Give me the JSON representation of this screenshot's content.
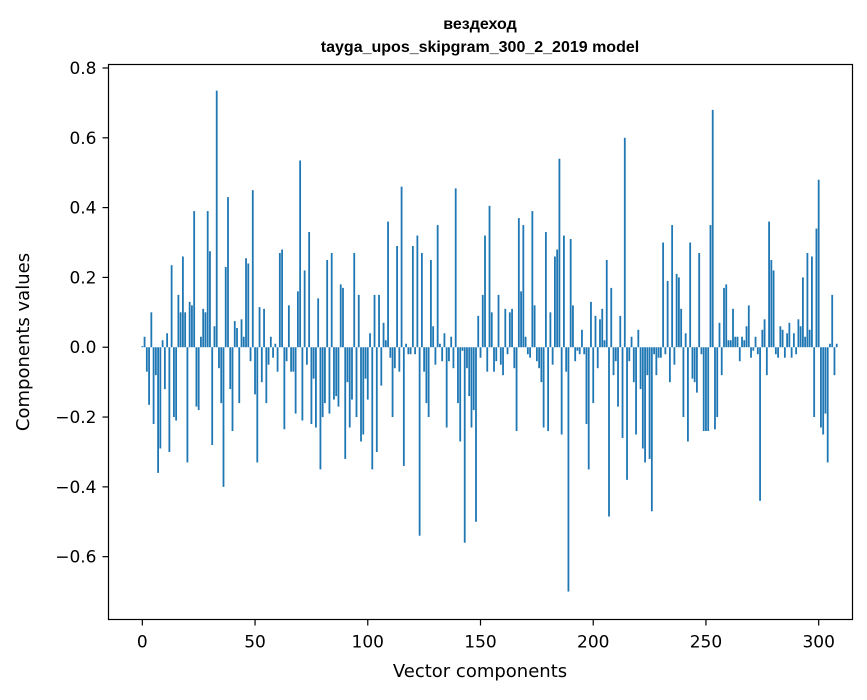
{
  "chart_data": {
    "type": "bar",
    "title": "вездеход",
    "subtitle": "tayga_upos_skipgram_300_2_2019 model",
    "xlabel": "Vector components",
    "ylabel": "Components values",
    "xlim": [
      -15,
      315
    ],
    "ylim": [
      -0.78,
      0.81
    ],
    "xticks": [
      0,
      50,
      100,
      150,
      200,
      250,
      300
    ],
    "yticks": [
      -0.6,
      -0.4,
      -0.2,
      0.0,
      0.2,
      0.4,
      0.6,
      0.8
    ],
    "ytick_labels": [
      "−0.6",
      "−0.4",
      "−0.2",
      "0.0",
      "0.2",
      "0.4",
      "0.6",
      "0.8"
    ],
    "bar_color": "#1f77b4",
    "grid": false,
    "values": [
      0.003,
      0.03,
      -0.07,
      -0.165,
      0.1,
      -0.22,
      -0.08,
      -0.36,
      -0.29,
      0.02,
      -0.12,
      0.04,
      -0.3,
      0.235,
      -0.2,
      -0.21,
      0.15,
      0.1,
      0.26,
      0.1,
      -0.33,
      0.13,
      0.12,
      0.39,
      -0.17,
      -0.18,
      0.03,
      0.11,
      0.1,
      0.39,
      0.275,
      -0.28,
      0.06,
      0.735,
      -0.06,
      -0.16,
      -0.4,
      0.23,
      0.43,
      -0.12,
      -0.24,
      0.075,
      0.055,
      -0.16,
      0.08,
      0.03,
      0.255,
      0.24,
      -0.04,
      0.45,
      -0.135,
      -0.33,
      0.115,
      -0.1,
      0.11,
      -0.16,
      -0.05,
      0.03,
      -0.03,
      0.01,
      -0.07,
      0.27,
      0.28,
      -0.235,
      -0.04,
      0.12,
      -0.07,
      -0.07,
      -0.19,
      0.16,
      0.535,
      -0.21,
      0.22,
      -0.05,
      0.33,
      -0.22,
      -0.09,
      -0.23,
      0.14,
      -0.35,
      -0.2,
      -0.16,
      0.25,
      -0.19,
      0.27,
      -0.15,
      -0.14,
      -0.17,
      0.18,
      0.17,
      -0.32,
      -0.1,
      -0.23,
      -0.15,
      0.27,
      -0.2,
      0.15,
      -0.27,
      -0.25,
      -0.09,
      -0.15,
      0.04,
      -0.35,
      0.15,
      -0.3,
      0.15,
      -0.11,
      0.07,
      0.02,
      0.36,
      -0.03,
      -0.2,
      -0.06,
      0.29,
      -0.07,
      0.46,
      -0.34,
      0.01,
      -0.02,
      -0.02,
      0.29,
      -0.02,
      0.32,
      -0.54,
      0.27,
      -0.07,
      -0.16,
      -0.2,
      0.25,
      0.06,
      -0.05,
      0.35,
      0.01,
      -0.04,
      0.04,
      -0.23,
      -0.04,
      0.03,
      -0.06,
      0.455,
      -0.16,
      -0.27,
      -0.01,
      -0.56,
      -0.06,
      -0.14,
      -0.23,
      -0.18,
      -0.5,
      0.09,
      -0.03,
      0.15,
      0.32,
      -0.07,
      0.405,
      0.1,
      -0.07,
      -0.04,
      0.15,
      -0.05,
      -0.08,
      0.11,
      -0.02,
      0.1,
      0.11,
      -0.06,
      -0.24,
      0.37,
      0.16,
      0.35,
      0.03,
      -0.02,
      -0.03,
      0.39,
      0.12,
      -0.04,
      -0.06,
      -0.1,
      -0.23,
      0.33,
      -0.24,
      0.1,
      -0.05,
      0.26,
      0.28,
      0.54,
      -0.25,
      0.32,
      -0.07,
      -0.7,
      0.31,
      0.12,
      -0.04,
      -0.01,
      -0.02,
      0.05,
      -0.02,
      -0.22,
      -0.35,
      0.13,
      -0.16,
      0.09,
      -0.06,
      0.08,
      0.11,
      0.02,
      0.25,
      -0.485,
      0.17,
      -0.08,
      -0.04,
      -0.17,
      0.09,
      -0.26,
      0.6,
      -0.38,
      -0.04,
      0.03,
      -0.1,
      -0.25,
      0.05,
      -0.12,
      -0.29,
      -0.33,
      -0.08,
      -0.32,
      -0.47,
      -0.02,
      -0.08,
      -0.03,
      -0.03,
      0.3,
      -0.02,
      0.19,
      -0.1,
      0.35,
      -0.05,
      0.21,
      0.2,
      0.11,
      -0.2,
      0.04,
      -0.27,
      0.3,
      -0.09,
      -0.1,
      -0.13,
      0.27,
      -0.02,
      -0.24,
      -0.24,
      -0.24,
      0.35,
      0.68,
      -0.235,
      -0.2,
      0.07,
      -0.08,
      0.17,
      0.18,
      0.02,
      0.02,
      0.11,
      0.03,
      0.03,
      -0.04,
      0.03,
      0.02,
      0.06,
      0.12,
      -0.03,
      -0.01,
      0.03,
      -0.02,
      -0.44,
      0.05,
      0.08,
      -0.08,
      0.36,
      0.25,
      0.22,
      -0.02,
      -0.03,
      0.06,
      0.05,
      -0.03,
      0.04,
      0.07,
      -0.03,
      0.04,
      -0.02,
      0.08,
      0.06,
      0.2,
      0.03,
      0.27,
      0.05,
      0.26,
      -0.2,
      0.34,
      0.48,
      -0.23,
      -0.25,
      -0.19,
      -0.33,
      0.01,
      0.15,
      -0.08,
      0.01
    ]
  }
}
